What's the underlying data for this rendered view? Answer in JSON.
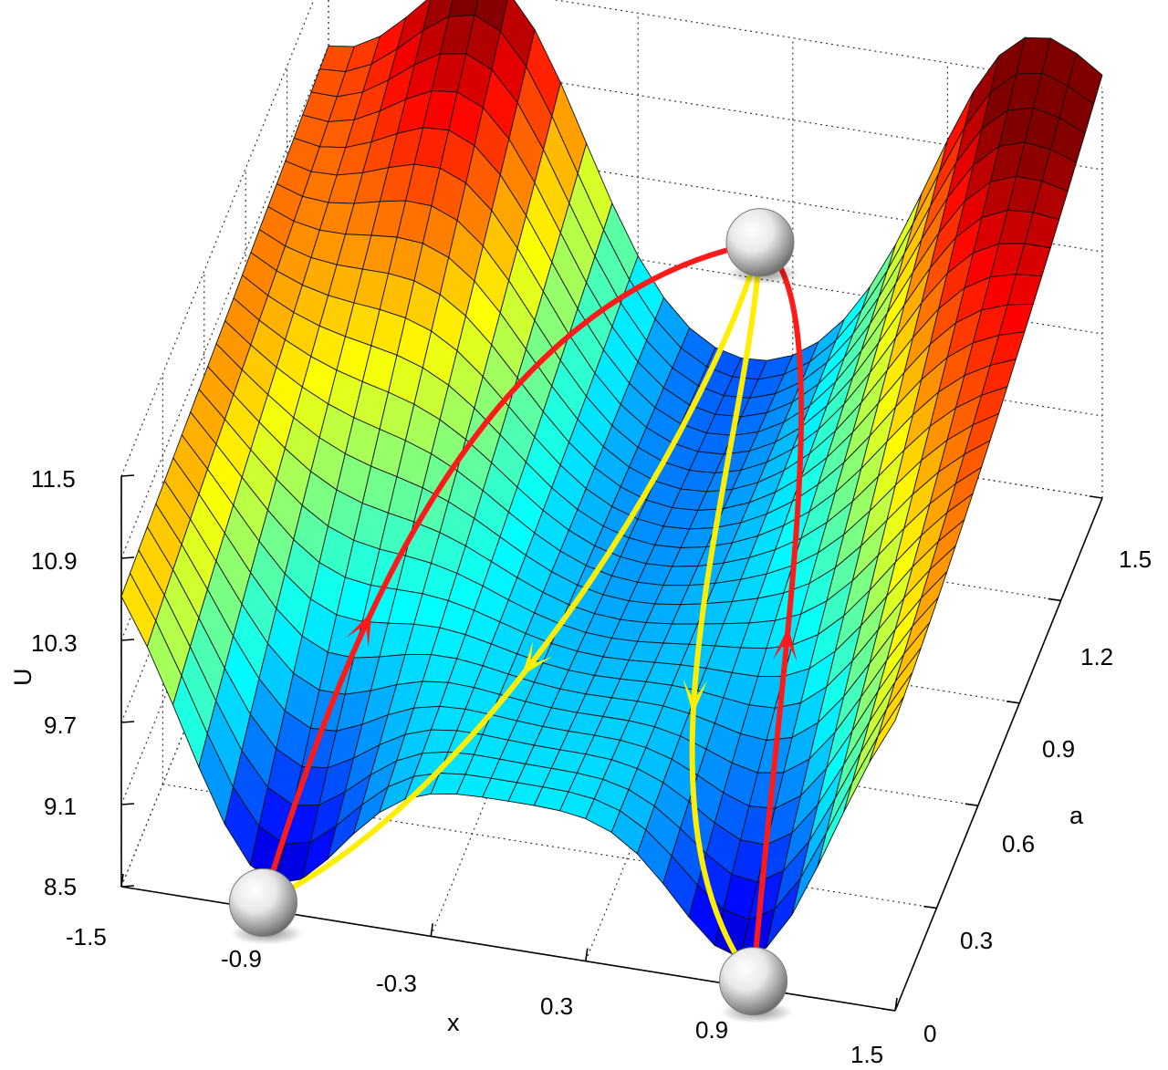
{
  "chart_data": {
    "type": "surface",
    "axes": {
      "x": {
        "label": "x",
        "range": [
          -1.5,
          1.5
        ],
        "ticks": [
          "-1.5",
          "-0.9",
          "-0.3",
          "0.3",
          "0.9",
          "1.5"
        ]
      },
      "a": {
        "label": "a",
        "range": [
          0,
          1.5
        ],
        "ticks": [
          "0",
          "0.3",
          "0.6",
          "0.9",
          "1.2",
          "1.5"
        ]
      },
      "U": {
        "label": "U",
        "range": [
          8.5,
          11.5
        ],
        "ticks": [
          "8.5",
          "9.1",
          "9.7",
          "10.3",
          "10.9",
          "11.5"
        ]
      }
    },
    "grid": true,
    "colormap": "jet",
    "surface_description": "potential U(x,a) with two deep wells near x=-0.9 and x=0.9 at a=0 and a shallow saddle near x=0.2, a=1.5",
    "balls": [
      {
        "name": "left-well",
        "x": -0.95,
        "a": 0.0,
        "U": 8.55
      },
      {
        "name": "right-well",
        "x": 0.95,
        "a": 0.0,
        "U": 8.55
      },
      {
        "name": "top-saddle",
        "x": 0.2,
        "a": 1.45,
        "U": 10.1
      }
    ],
    "paths": [
      {
        "color": "red",
        "from": "left-well",
        "to": "top-saddle",
        "arrow_direction": "up"
      },
      {
        "color": "red",
        "from": "right-well",
        "to": "top-saddle",
        "arrow_direction": "up"
      },
      {
        "color": "yellow",
        "from": "top-saddle",
        "to": "left-well",
        "arrow_direction": "down"
      },
      {
        "color": "yellow",
        "from": "top-saddle",
        "to": "right-well",
        "arrow_direction": "down"
      }
    ]
  }
}
